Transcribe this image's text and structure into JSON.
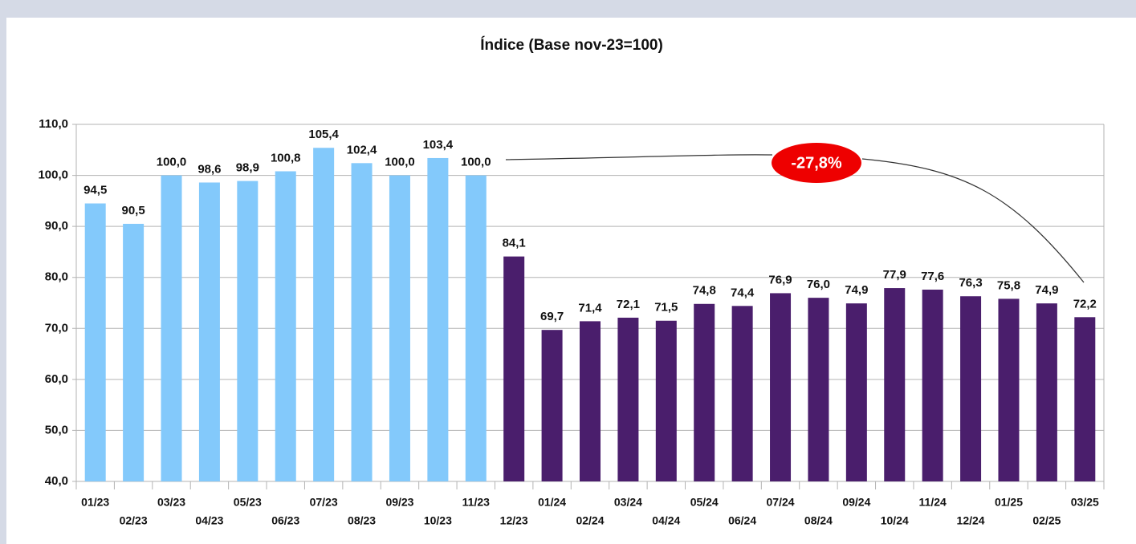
{
  "chart_data": {
    "type": "bar",
    "title": "Índice (Base nov-23=100)",
    "categories": [
      "01/23",
      "02/23",
      "03/23",
      "04/23",
      "05/23",
      "06/23",
      "07/23",
      "08/23",
      "09/23",
      "10/23",
      "11/23",
      "12/23",
      "01/24",
      "02/24",
      "03/24",
      "04/24",
      "05/24",
      "06/24",
      "07/24",
      "08/24",
      "09/24",
      "10/24",
      "11/24",
      "12/24",
      "01/25",
      "02/25",
      "03/25"
    ],
    "values": [
      94.5,
      90.5,
      100.0,
      98.6,
      98.9,
      100.8,
      105.4,
      102.4,
      100.0,
      103.4,
      100.0,
      84.1,
      69.7,
      71.4,
      72.1,
      71.5,
      74.8,
      74.4,
      76.9,
      76.0,
      74.9,
      77.9,
      77.6,
      76.3,
      75.8,
      74.9,
      72.2
    ],
    "value_labels": [
      "94,5",
      "90,5",
      "100,0",
      "98,6",
      "98,9",
      "100,8",
      "105,4",
      "102,4",
      "100,0",
      "103,4",
      "100,0",
      "84,1",
      "69,7",
      "71,4",
      "72,1",
      "71,5",
      "74,8",
      "74,4",
      "76,9",
      "76,0",
      "74,9",
      "77,9",
      "77,6",
      "76,3",
      "75,8",
      "74,9",
      "72,2"
    ],
    "colors": [
      "#83c9fb",
      "#83c9fb",
      "#83c9fb",
      "#83c9fb",
      "#83c9fb",
      "#83c9fb",
      "#83c9fb",
      "#83c9fb",
      "#83c9fb",
      "#83c9fb",
      "#83c9fb",
      "#4a1e6c",
      "#4a1e6c",
      "#4a1e6c",
      "#4a1e6c",
      "#4a1e6c",
      "#4a1e6c",
      "#4a1e6c",
      "#4a1e6c",
      "#4a1e6c",
      "#4a1e6c",
      "#4a1e6c",
      "#4a1e6c",
      "#4a1e6c",
      "#4a1e6c",
      "#4a1e6c",
      "#4a1e6c"
    ],
    "ylim": [
      40,
      110
    ],
    "yticks": [
      {
        "value": 40,
        "label": "40,0"
      },
      {
        "value": 50,
        "label": "50,0"
      },
      {
        "value": 60,
        "label": "60,0"
      },
      {
        "value": 70,
        "label": "70,0"
      },
      {
        "value": 80,
        "label": "80,0"
      },
      {
        "value": 90,
        "label": "90,0"
      },
      {
        "value": 100,
        "label": "100,0"
      },
      {
        "value": 110,
        "label": "110,0"
      }
    ],
    "grid": true,
    "annotation": "-27,8%"
  }
}
